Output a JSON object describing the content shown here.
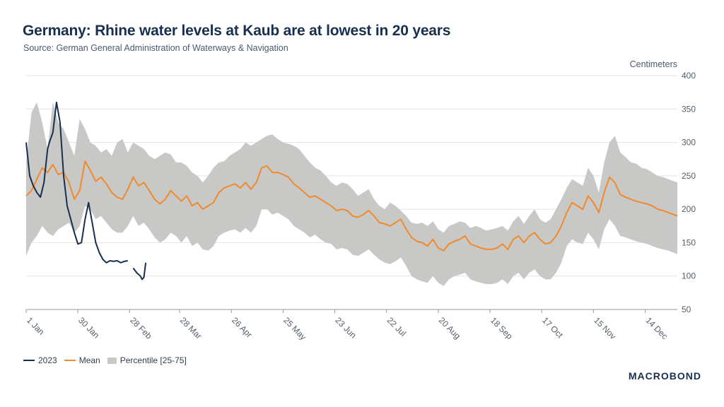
{
  "colors": {
    "series_2023": "#17304f",
    "mean": "#f08a2c",
    "band": "#c8c8c6",
    "grid": "#e2e2e2",
    "axis": "#9a9a9a"
  },
  "chart_data": {
    "type": "line",
    "title": "Germany: Rhine water levels at Kaub are at lowest in 20 years",
    "subtitle": "Source: German General Administration of Waterways & Navigation",
    "ylabel": "Centimeters",
    "ylim": [
      50,
      400
    ],
    "yticks": [
      50,
      100,
      150,
      200,
      250,
      300,
      350,
      400
    ],
    "xlim": [
      1,
      366
    ],
    "xticks": [
      {
        "day": 1,
        "label": "1 Jan"
      },
      {
        "day": 30,
        "label": "30 Jan"
      },
      {
        "day": 59,
        "label": "28 Feb"
      },
      {
        "day": 87,
        "label": "28 Mar"
      },
      {
        "day": 116,
        "label": "26 Apr"
      },
      {
        "day": 145,
        "label": "25 May"
      },
      {
        "day": 174,
        "label": "23 Jun"
      },
      {
        "day": 203,
        "label": "22 Jul"
      },
      {
        "day": 232,
        "label": "20 Aug"
      },
      {
        "day": 261,
        "label": "18 Sep"
      },
      {
        "day": 290,
        "label": "17 Oct"
      },
      {
        "day": 319,
        "label": "15 Nov"
      },
      {
        "day": 348,
        "label": "14 Dec"
      }
    ],
    "legend": [
      "2023",
      "Mean",
      "Percentile [25-75]"
    ],
    "series": [
      {
        "name": "Mean",
        "x": [
          1,
          4,
          7,
          10,
          13,
          16,
          19,
          22,
          25,
          28,
          31,
          34,
          37,
          40,
          43,
          46,
          49,
          52,
          55,
          58,
          61,
          64,
          67,
          70,
          73,
          76,
          79,
          82,
          85,
          88,
          91,
          94,
          97,
          100,
          103,
          106,
          109,
          112,
          115,
          118,
          121,
          124,
          127,
          130,
          133,
          136,
          139,
          142,
          145,
          148,
          151,
          154,
          157,
          160,
          163,
          166,
          169,
          172,
          175,
          178,
          181,
          184,
          187,
          190,
          193,
          196,
          199,
          202,
          205,
          208,
          211,
          214,
          217,
          220,
          223,
          226,
          229,
          232,
          235,
          238,
          241,
          244,
          247,
          250,
          253,
          256,
          259,
          262,
          265,
          268,
          271,
          274,
          277,
          280,
          283,
          286,
          289,
          292,
          295,
          298,
          301,
          304,
          307,
          310,
          313,
          316,
          319,
          322,
          325,
          328,
          331,
          334,
          337,
          340,
          343,
          346,
          349,
          352,
          355,
          358,
          361,
          364,
          366
        ],
        "values": [
          220,
          228,
          245,
          262,
          255,
          267,
          252,
          255,
          240,
          215,
          228,
          272,
          258,
          242,
          248,
          238,
          225,
          218,
          215,
          230,
          248,
          235,
          240,
          228,
          215,
          208,
          215,
          228,
          220,
          212,
          220,
          205,
          210,
          200,
          205,
          210,
          225,
          232,
          235,
          238,
          232,
          240,
          230,
          240,
          262,
          265,
          255,
          255,
          252,
          248,
          238,
          232,
          225,
          218,
          220,
          215,
          210,
          205,
          198,
          200,
          198,
          190,
          188,
          192,
          198,
          190,
          180,
          178,
          175,
          180,
          185,
          170,
          158,
          152,
          150,
          145,
          155,
          142,
          138,
          148,
          152,
          155,
          160,
          148,
          145,
          142,
          140,
          140,
          142,
          148,
          140,
          155,
          160,
          150,
          160,
          165,
          155,
          148,
          150,
          160,
          175,
          195,
          210,
          205,
          200,
          220,
          210,
          195,
          225,
          248,
          240,
          222,
          218,
          215,
          212,
          210,
          208,
          205,
          200,
          198,
          195,
          192,
          190
        ],
        "style": "line"
      },
      {
        "name": "2023",
        "segments": [
          {
            "x": [
              1,
              3,
              5,
              7,
              9,
              11,
              13,
              14,
              16,
              18,
              20,
              22,
              24,
              26,
              28,
              30,
              32,
              34,
              36,
              38,
              40,
              42,
              44,
              46,
              48,
              50,
              52,
              54,
              56,
              58
            ],
            "values": [
              300,
              250,
              235,
              225,
              218,
              240,
              290,
              300,
              315,
              360,
              330,
              250,
              205,
              185,
              165,
              148,
              150,
              185,
              210,
              180,
              150,
              135,
              125,
              120,
              123,
              122,
              123,
              120,
              122,
              123
            ]
          },
          {
            "x": [
              61,
              63,
              65,
              66,
              67,
              68
            ],
            "values": [
              112,
              105,
              100,
              95,
              98,
              120
            ]
          }
        ],
        "style": "line"
      },
      {
        "name": "Percentile [25-75]",
        "x": [
          1,
          4,
          7,
          10,
          13,
          16,
          19,
          22,
          25,
          28,
          31,
          34,
          37,
          40,
          43,
          46,
          49,
          52,
          55,
          58,
          61,
          64,
          67,
          70,
          73,
          76,
          79,
          82,
          85,
          88,
          91,
          94,
          97,
          100,
          103,
          106,
          109,
          112,
          115,
          118,
          121,
          124,
          127,
          130,
          133,
          136,
          139,
          142,
          145,
          148,
          151,
          154,
          157,
          160,
          163,
          166,
          169,
          172,
          175,
          178,
          181,
          184,
          187,
          190,
          193,
          196,
          199,
          202,
          205,
          208,
          211,
          214,
          217,
          220,
          223,
          226,
          229,
          232,
          235,
          238,
          241,
          244,
          247,
          250,
          253,
          256,
          259,
          262,
          265,
          268,
          271,
          274,
          277,
          280,
          283,
          286,
          289,
          292,
          295,
          298,
          301,
          304,
          307,
          310,
          313,
          316,
          319,
          322,
          325,
          328,
          331,
          334,
          337,
          340,
          343,
          346,
          349,
          352,
          355,
          358,
          361,
          364,
          366
        ],
        "upper": [
          270,
          345,
          360,
          330,
          290,
          360,
          330,
          320,
          300,
          280,
          335,
          320,
          300,
          295,
          285,
          290,
          280,
          300,
          305,
          285,
          300,
          295,
          290,
          280,
          275,
          280,
          285,
          282,
          270,
          270,
          265,
          255,
          250,
          240,
          250,
          262,
          270,
          272,
          280,
          285,
          290,
          300,
          295,
          300,
          305,
          310,
          312,
          305,
          300,
          298,
          295,
          290,
          280,
          270,
          262,
          258,
          250,
          240,
          235,
          240,
          238,
          230,
          220,
          225,
          230,
          215,
          205,
          200,
          210,
          205,
          198,
          190,
          180,
          178,
          180,
          175,
          182,
          170,
          165,
          175,
          178,
          182,
          180,
          172,
          175,
          172,
          168,
          170,
          172,
          175,
          168,
          182,
          190,
          178,
          190,
          200,
          185,
          180,
          185,
          200,
          215,
          232,
          245,
          240,
          235,
          262,
          250,
          225,
          270,
          300,
          310,
          285,
          278,
          270,
          268,
          262,
          260,
          255,
          250,
          248,
          245,
          242,
          240
        ],
        "lower": [
          130,
          150,
          160,
          175,
          165,
          160,
          170,
          175,
          180,
          165,
          175,
          205,
          200,
          185,
          190,
          180,
          170,
          165,
          165,
          175,
          190,
          175,
          180,
          170,
          158,
          150,
          155,
          165,
          160,
          150,
          160,
          145,
          150,
          140,
          138,
          145,
          160,
          165,
          168,
          170,
          165,
          172,
          165,
          175,
          200,
          200,
          192,
          195,
          190,
          185,
          175,
          170,
          165,
          158,
          162,
          155,
          150,
          148,
          140,
          142,
          140,
          132,
          130,
          135,
          140,
          132,
          125,
          120,
          118,
          122,
          128,
          115,
          100,
          95,
          92,
          90,
          100,
          90,
          85,
          95,
          100,
          102,
          105,
          95,
          92,
          90,
          88,
          88,
          90,
          95,
          88,
          100,
          105,
          95,
          105,
          110,
          100,
          95,
          95,
          105,
          120,
          145,
          155,
          150,
          148,
          165,
          155,
          140,
          170,
          185,
          175,
          160,
          158,
          155,
          152,
          150,
          148,
          145,
          142,
          140,
          138,
          135,
          133
        ],
        "style": "band"
      }
    ]
  },
  "brand": "MACROBOND"
}
